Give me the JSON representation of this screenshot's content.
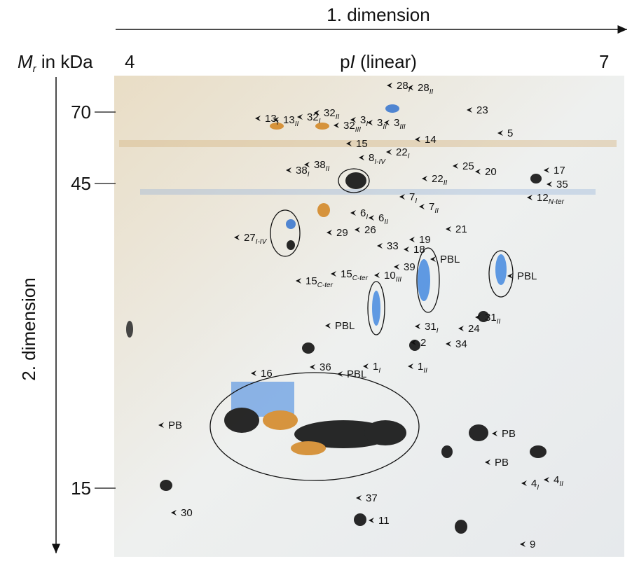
{
  "header": {
    "dimension1": "1. dimension",
    "mr_m": "M",
    "mr_r": "r",
    "mr_rest": " in kDa",
    "pi_start": "4",
    "pi_p": "p",
    "pi_i": "I",
    "pi_rest": " (linear)",
    "pi_end": "7",
    "dimension2": "2. dimension"
  },
  "mw_ticks": [
    "70",
    "45",
    "15"
  ],
  "spots": [
    {
      "text": "28",
      "sub": "I"
    },
    {
      "text": "28",
      "sub": "II"
    },
    {
      "text": "23"
    },
    {
      "text": "5"
    },
    {
      "text": "13",
      "sub": "I"
    },
    {
      "text": "13",
      "sub": "II"
    },
    {
      "text": "32",
      "sub": "I"
    },
    {
      "text": "32",
      "sub": "II"
    },
    {
      "text": "3",
      "sub": "I"
    },
    {
      "text": "3",
      "sub": "II"
    },
    {
      "text": "3",
      "sub": "III"
    },
    {
      "text": "32",
      "sub": "III"
    },
    {
      "text": "15"
    },
    {
      "text": "14"
    },
    {
      "text": "8",
      "sub": "I-IV"
    },
    {
      "text": "22",
      "sub": "I"
    },
    {
      "text": "22",
      "sub": "II"
    },
    {
      "text": "25"
    },
    {
      "text": "20"
    },
    {
      "text": "17"
    },
    {
      "text": "35"
    },
    {
      "text": "12",
      "sub": "N-ter"
    },
    {
      "text": "38",
      "sub": "I"
    },
    {
      "text": "38",
      "sub": "II"
    },
    {
      "text": "7",
      "sub": "I"
    },
    {
      "text": "7",
      "sub": "II"
    },
    {
      "text": "6",
      "sub": "I"
    },
    {
      "text": "6",
      "sub": "II"
    },
    {
      "text": "21"
    },
    {
      "text": "29"
    },
    {
      "text": "26"
    },
    {
      "text": "27",
      "sub": "I-IV"
    },
    {
      "text": "19"
    },
    {
      "text": "18"
    },
    {
      "text": "33"
    },
    {
      "text": "39"
    },
    {
      "text": "10",
      "sub": "III"
    },
    {
      "text": "15",
      "sub": "C-ter"
    },
    {
      "text": "15",
      "sub": "C-ter"
    },
    {
      "text": "PBL"
    },
    {
      "text": "PBL"
    },
    {
      "text": "PBL"
    },
    {
      "text": "31",
      "sub": "I"
    },
    {
      "text": "31",
      "sub": "II"
    },
    {
      "text": "24"
    },
    {
      "text": "34"
    },
    {
      "text": "2"
    },
    {
      "text": "1",
      "sub": "I"
    },
    {
      "text": "1",
      "sub": "II"
    },
    {
      "text": "16"
    },
    {
      "text": "36"
    },
    {
      "text": "PBL"
    },
    {
      "text": "PB"
    },
    {
      "text": "PB"
    },
    {
      "text": "PB"
    },
    {
      "text": "30"
    },
    {
      "text": "37"
    },
    {
      "text": "11"
    },
    {
      "text": "4",
      "sub": "I"
    },
    {
      "text": "4",
      "sub": "II"
    },
    {
      "text": "9"
    }
  ]
}
